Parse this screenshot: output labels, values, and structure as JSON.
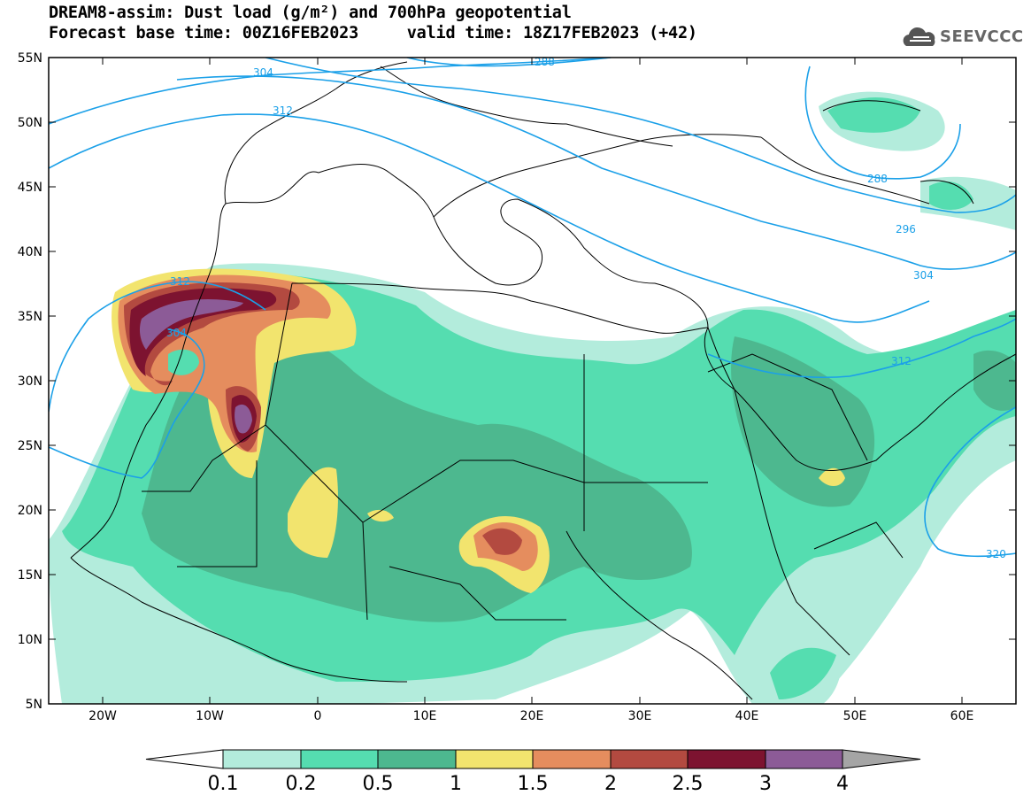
{
  "header": {
    "title_line1": "DREAM8-assim: Dust load (g/m²) and 700hPa geopotential",
    "title_line2": "Forecast base time: 00Z16FEB2023     valid time: 18Z17FEB2023 (+42)",
    "logo_text": "SEEVCCC"
  },
  "map": {
    "lon_range": [
      -25,
      65
    ],
    "lat_range": [
      5,
      55
    ],
    "lat_ticks": [
      "55N",
      "50N",
      "45N",
      "40N",
      "35N",
      "30N",
      "25N",
      "20N",
      "15N",
      "10N",
      "5N"
    ],
    "lon_ticks": [
      "20W",
      "10W",
      "0",
      "10E",
      "20E",
      "30E",
      "40E",
      "50E",
      "60E"
    ],
    "geopotential_contour_labels": [
      "288",
      "304",
      "312",
      "304",
      "312",
      "288",
      "296",
      "304",
      "312",
      "320"
    ],
    "colors": {
      "contour_line": "#1ba0e8",
      "coast": "#000000"
    }
  },
  "colorbar": {
    "labels": [
      "0.1",
      "0.2",
      "0.5",
      "1",
      "1.5",
      "2",
      "2.5",
      "3",
      "4"
    ],
    "colors": [
      "#ffffff",
      "#b3ecdc",
      "#55ddb0",
      "#4db88f",
      "#f2e46e",
      "#e58d5e",
      "#b34a40",
      "#7d1330",
      "#8c5b97",
      "#a5a5a5"
    ]
  }
}
